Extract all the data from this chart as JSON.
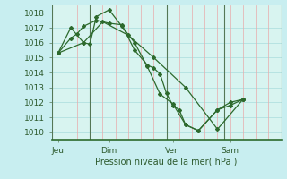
{
  "background_color": "#c8eef0",
  "plot_bg_color": "#d8f4f0",
  "grid_h_color": "#aadddd",
  "grid_v_color": "#e8aaaa",
  "line_color": "#2d6a2d",
  "ylim": [
    1009.5,
    1018.5
  ],
  "yticks": [
    1010,
    1011,
    1012,
    1013,
    1014,
    1015,
    1016,
    1017,
    1018
  ],
  "xlabel": "Pression niveau de la mer( hPa )",
  "day_labels": [
    "Jeu",
    "Dim",
    "Ven",
    "Sam"
  ],
  "day_positions": [
    0.5,
    4.5,
    9.5,
    14.0
  ],
  "vline_positions": [
    0,
    3,
    9,
    13.5,
    18
  ],
  "xlim": [
    0,
    18
  ],
  "series": [
    [
      0.5,
      1015.3,
      1.5,
      1016.3,
      2.0,
      1016.6,
      2.5,
      1017.1,
      3.5,
      1017.5,
      4.5,
      1017.3,
      5.5,
      1017.2,
      6.5,
      1015.5,
      7.5,
      1014.5,
      8.0,
      1014.3,
      8.5,
      1013.9,
      9.0,
      1012.6,
      9.5,
      1011.8,
      10.0,
      1011.5,
      10.5,
      1010.5,
      11.5,
      1010.1,
      13.0,
      1011.5,
      14.0,
      1011.8,
      15.0,
      1012.2
    ],
    [
      0.5,
      1015.3,
      1.5,
      1017.0,
      2.5,
      1016.0,
      3.0,
      1015.9,
      3.5,
      1017.75,
      4.5,
      1018.2,
      5.5,
      1017.1,
      6.5,
      1016.0,
      7.5,
      1014.4,
      8.5,
      1012.55,
      9.5,
      1011.9,
      10.5,
      1010.5,
      11.5,
      1010.1,
      13.0,
      1011.5,
      14.0,
      1012.0,
      15.0,
      1012.2
    ],
    [
      0.5,
      1015.3,
      2.5,
      1016.0,
      4.0,
      1017.4,
      6.0,
      1016.5,
      8.0,
      1015.0,
      10.5,
      1013.0,
      13.0,
      1010.2,
      15.0,
      1012.2
    ]
  ]
}
